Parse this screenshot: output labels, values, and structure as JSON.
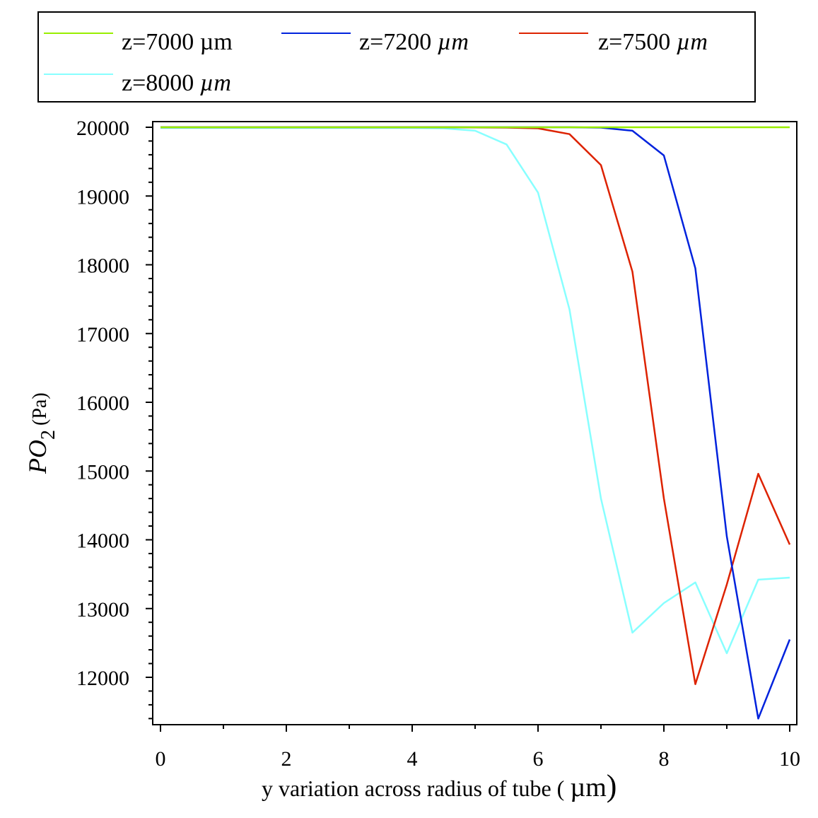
{
  "chart_data": {
    "type": "line",
    "xlabel": "y variation across radius of tube (",
    "xlabel_unit": "µm",
    "xlabel_close": ")",
    "ylabel_main": "PO",
    "ylabel_sub": "2",
    "ylabel_unit": "(Pa)",
    "xlim": [
      0,
      10
    ],
    "ylim": [
      11350,
      20080
    ],
    "x_ticks": [
      0,
      2,
      4,
      6,
      8,
      10
    ],
    "x_tick_labels": [
      "0",
      "2",
      "4",
      "6",
      "8",
      "10"
    ],
    "y_ticks": [
      12000,
      13000,
      14000,
      15000,
      16000,
      17000,
      18000,
      19000,
      20000
    ],
    "y_tick_labels": [
      "12000",
      "13000",
      "14000",
      "15000",
      "16000",
      "17000",
      "18000",
      "19000",
      "20000"
    ],
    "legend_position": "top",
    "series": [
      {
        "name": "z=7000 ",
        "name_unit": "µm",
        "color": "#99ee00",
        "x": [
          0,
          0.5,
          1,
          1.5,
          2,
          2.5,
          3,
          3.5,
          4,
          4.5,
          5,
          5.5,
          6,
          6.5,
          7,
          7.5,
          8,
          8.5,
          9,
          9.5,
          10
        ],
        "y": [
          20000,
          20000,
          20000,
          20000,
          20000,
          20000,
          20000,
          20000,
          20000,
          20000,
          20000,
          20000,
          20000,
          20000,
          20000,
          20000,
          20000,
          20000,
          20000,
          20000,
          20000
        ]
      },
      {
        "name": "z=7200 ",
        "name_unit": "µm",
        "color": "#0022dd",
        "x": [
          0,
          0.5,
          1,
          1.5,
          2,
          2.5,
          3,
          3.5,
          4,
          4.5,
          5,
          5.5,
          6,
          6.5,
          7,
          7.5,
          8,
          8.5,
          9,
          9.5,
          10
        ],
        "y": [
          20000,
          20000,
          20000,
          20000,
          20000,
          20000,
          20000,
          20000,
          20000,
          20000,
          20000,
          20000,
          20000,
          20000,
          19995,
          19950,
          19590,
          17950,
          14050,
          11400,
          12550
        ]
      },
      {
        "name": "z=7500 ",
        "name_unit": "µm",
        "color": "#dd2200",
        "x": [
          0,
          0.5,
          1,
          1.5,
          2,
          2.5,
          3,
          3.5,
          4,
          4.5,
          5,
          5.5,
          6,
          6.5,
          7,
          7.5,
          8,
          8.5,
          9,
          9.5,
          10
        ],
        "y": [
          20000,
          20000,
          20000,
          20000,
          20000,
          20000,
          20000,
          20000,
          20000,
          20000,
          19998,
          19995,
          19985,
          19900,
          19450,
          17900,
          14600,
          11900,
          13350,
          14960,
          13930
        ]
      },
      {
        "name": "z=8000 ",
        "name_unit": "µm",
        "color": "#88ffff",
        "x": [
          0,
          0.5,
          1,
          1.5,
          2,
          2.5,
          3,
          3.5,
          4,
          4.5,
          5,
          5.5,
          6,
          6.5,
          7,
          7.5,
          8,
          8.5,
          9,
          9.5,
          10
        ],
        "y": [
          19990,
          19990,
          19990,
          19990,
          19990,
          19990,
          19990,
          19990,
          19990,
          19985,
          19950,
          19750,
          19050,
          17350,
          14600,
          12650,
          13080,
          13380,
          12350,
          13420,
          13450
        ]
      }
    ]
  }
}
